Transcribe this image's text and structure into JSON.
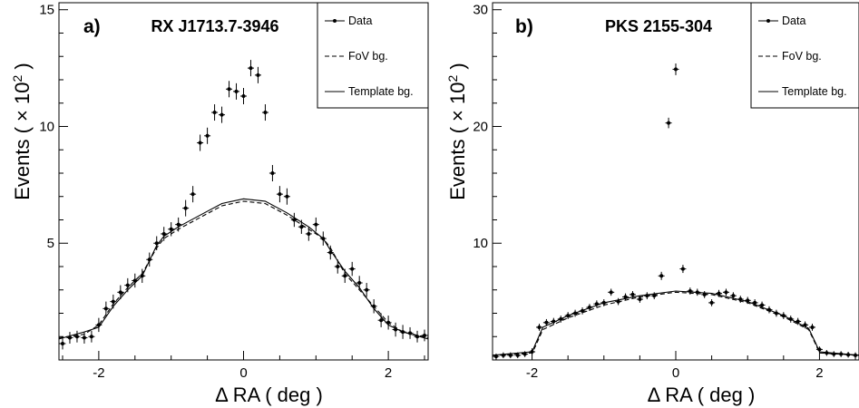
{
  "chart_data": [
    {
      "type": "scatter",
      "panel_label": "a)",
      "title": "RX J1713.7-3946",
      "xlabel": "Δ RA ( deg )",
      "ylabel": "Events ( × 10",
      "ylabel_exponent": "2",
      "ylabel_close": " )",
      "xlim": [
        -2.55,
        2.55
      ],
      "ylim": [
        0,
        15.3
      ],
      "x_ticks": [
        -2,
        0,
        2
      ],
      "x_tick_labels": [
        "-2",
        "0",
        "2"
      ],
      "y_ticks": [
        5,
        10,
        15
      ],
      "y_tick_labels": [
        "5",
        "10",
        "15"
      ],
      "legend_position": "top-right",
      "series": [
        {
          "name": "Data",
          "style": "points-with-error-bars",
          "x": [
            -2.5,
            -2.4,
            -2.3,
            -2.2,
            -2.1,
            -2.0,
            -1.9,
            -1.8,
            -1.7,
            -1.6,
            -1.5,
            -1.4,
            -1.3,
            -1.2,
            -1.1,
            -1.0,
            -0.9,
            -0.8,
            -0.7,
            -0.6,
            -0.5,
            -0.4,
            -0.3,
            -0.2,
            -0.1,
            0.0,
            0.1,
            0.2,
            0.3,
            0.4,
            0.5,
            0.6,
            0.7,
            0.8,
            0.9,
            1.0,
            1.1,
            1.2,
            1.3,
            1.4,
            1.5,
            1.6,
            1.7,
            1.8,
            1.9,
            2.0,
            2.1,
            2.2,
            2.3,
            2.4,
            2.5
          ],
          "y": [
            0.7,
            0.95,
            1.0,
            0.95,
            1.0,
            1.5,
            2.2,
            2.5,
            2.9,
            3.2,
            3.4,
            3.6,
            4.3,
            5.0,
            5.4,
            5.6,
            5.8,
            6.5,
            7.1,
            9.3,
            9.6,
            10.6,
            10.5,
            11.6,
            11.5,
            11.3,
            12.5,
            12.2,
            10.6,
            8.0,
            7.1,
            7.0,
            6.0,
            5.7,
            5.4,
            5.8,
            5.2,
            4.6,
            4.0,
            3.6,
            3.9,
            3.3,
            3.0,
            2.3,
            1.7,
            1.6,
            1.3,
            1.2,
            1.15,
            1.0,
            1.05
          ],
          "yerr": [
            0.25,
            0.25,
            0.25,
            0.25,
            0.25,
            0.3,
            0.3,
            0.3,
            0.3,
            0.3,
            0.3,
            0.3,
            0.3,
            0.3,
            0.3,
            0.3,
            0.3,
            0.35,
            0.35,
            0.35,
            0.35,
            0.35,
            0.35,
            0.35,
            0.35,
            0.35,
            0.35,
            0.35,
            0.35,
            0.35,
            0.35,
            0.35,
            0.3,
            0.3,
            0.3,
            0.3,
            0.3,
            0.3,
            0.3,
            0.3,
            0.3,
            0.3,
            0.3,
            0.3,
            0.3,
            0.3,
            0.3,
            0.3,
            0.25,
            0.25,
            0.25
          ]
        },
        {
          "name": "FoV bg.",
          "style": "dashed-line",
          "x": [
            -2.55,
            -2.2,
            -2.0,
            -1.8,
            -1.6,
            -1.4,
            -1.2,
            -1.1,
            -0.9,
            -0.6,
            -0.3,
            0.0,
            0.3,
            0.6,
            0.9,
            1.1,
            1.2,
            1.4,
            1.6,
            1.8,
            2.0,
            2.2,
            2.55
          ],
          "y": [
            0.95,
            1.1,
            1.5,
            2.4,
            3.1,
            3.7,
            4.8,
            5.2,
            5.6,
            6.1,
            6.6,
            6.8,
            6.7,
            6.2,
            5.6,
            5.2,
            4.8,
            3.7,
            3.0,
            2.3,
            1.6,
            1.2,
            0.95
          ]
        },
        {
          "name": "Template bg.",
          "style": "solid-line",
          "x": [
            -2.55,
            -2.2,
            -2.0,
            -1.8,
            -1.6,
            -1.4,
            -1.2,
            -1.1,
            -0.9,
            -0.6,
            -0.3,
            0.0,
            0.3,
            0.6,
            0.9,
            1.1,
            1.2,
            1.4,
            1.6,
            1.8,
            2.0,
            2.2,
            2.55
          ],
          "y": [
            0.9,
            1.2,
            1.4,
            2.3,
            3.0,
            3.6,
            4.9,
            5.3,
            5.7,
            6.2,
            6.7,
            6.9,
            6.8,
            6.3,
            5.7,
            5.2,
            4.7,
            3.8,
            3.1,
            2.2,
            1.5,
            1.2,
            0.9
          ]
        }
      ]
    },
    {
      "type": "scatter",
      "panel_label": "b)",
      "title": "PKS 2155-304",
      "xlabel": "Δ RA ( deg )",
      "ylabel": "Events ( × 10",
      "ylabel_exponent": "2",
      "ylabel_close": " )",
      "xlim": [
        -2.55,
        2.55
      ],
      "ylim": [
        0,
        30.6
      ],
      "x_ticks": [
        -2,
        0,
        2
      ],
      "x_tick_labels": [
        "-2",
        "0",
        "2"
      ],
      "y_ticks": [
        10,
        20,
        30
      ],
      "y_tick_labels": [
        "10",
        "20",
        "30"
      ],
      "legend_position": "top-right",
      "series": [
        {
          "name": "Data",
          "style": "points-with-error-bars",
          "x": [
            -2.5,
            -2.4,
            -2.3,
            -2.2,
            -2.1,
            -2.0,
            -1.9,
            -1.8,
            -1.7,
            -1.6,
            -1.5,
            -1.4,
            -1.3,
            -1.2,
            -1.1,
            -1.0,
            -0.9,
            -0.8,
            -0.7,
            -0.6,
            -0.5,
            -0.4,
            -0.3,
            -0.2,
            -0.1,
            0.0,
            0.1,
            0.2,
            0.3,
            0.4,
            0.5,
            0.6,
            0.7,
            0.8,
            0.9,
            1.0,
            1.1,
            1.2,
            1.3,
            1.4,
            1.5,
            1.6,
            1.7,
            1.8,
            1.9,
            2.0,
            2.1,
            2.2,
            2.3,
            2.4,
            2.5
          ],
          "y": [
            0.3,
            0.4,
            0.4,
            0.4,
            0.5,
            0.7,
            2.8,
            3.2,
            3.3,
            3.5,
            3.8,
            4.0,
            4.2,
            4.5,
            4.8,
            4.9,
            5.8,
            5.0,
            5.4,
            5.6,
            5.2,
            5.5,
            5.5,
            7.2,
            20.3,
            24.9,
            7.8,
            5.9,
            5.8,
            5.6,
            4.9,
            5.7,
            5.8,
            5.5,
            5.2,
            5.1,
            4.9,
            4.7,
            4.3,
            4.0,
            3.8,
            3.5,
            3.3,
            3.0,
            2.8,
            0.9,
            0.6,
            0.5,
            0.5,
            0.45,
            0.4
          ],
          "yerr": [
            0.25,
            0.25,
            0.25,
            0.25,
            0.25,
            0.3,
            0.3,
            0.3,
            0.3,
            0.3,
            0.3,
            0.3,
            0.3,
            0.3,
            0.3,
            0.3,
            0.3,
            0.3,
            0.3,
            0.3,
            0.3,
            0.3,
            0.3,
            0.35,
            0.45,
            0.5,
            0.35,
            0.3,
            0.3,
            0.3,
            0.3,
            0.3,
            0.3,
            0.3,
            0.3,
            0.3,
            0.3,
            0.3,
            0.3,
            0.3,
            0.3,
            0.3,
            0.3,
            0.3,
            0.3,
            0.25,
            0.25,
            0.25,
            0.25,
            0.25,
            0.25
          ]
        },
        {
          "name": "FoV bg.",
          "style": "dashed-line",
          "x": [
            -2.55,
            -2.0,
            -1.95,
            -1.85,
            -1.5,
            -1.0,
            -0.5,
            0.0,
            0.5,
            1.0,
            1.5,
            1.85,
            1.95,
            2.0,
            2.55
          ],
          "y": [
            0.4,
            0.6,
            1.2,
            2.6,
            3.6,
            4.7,
            5.4,
            5.8,
            5.6,
            4.9,
            3.7,
            2.6,
            1.3,
            0.6,
            0.4
          ]
        },
        {
          "name": "Template bg.",
          "style": "solid-line",
          "x": [
            -2.55,
            -2.0,
            -1.95,
            -1.85,
            -1.5,
            -1.0,
            -0.5,
            0.0,
            0.5,
            1.0,
            1.5,
            1.85,
            1.95,
            2.0,
            2.55
          ],
          "y": [
            0.4,
            0.7,
            1.4,
            2.8,
            3.8,
            4.9,
            5.5,
            5.9,
            5.7,
            5.0,
            3.8,
            2.7,
            1.4,
            0.7,
            0.4
          ]
        }
      ]
    }
  ]
}
